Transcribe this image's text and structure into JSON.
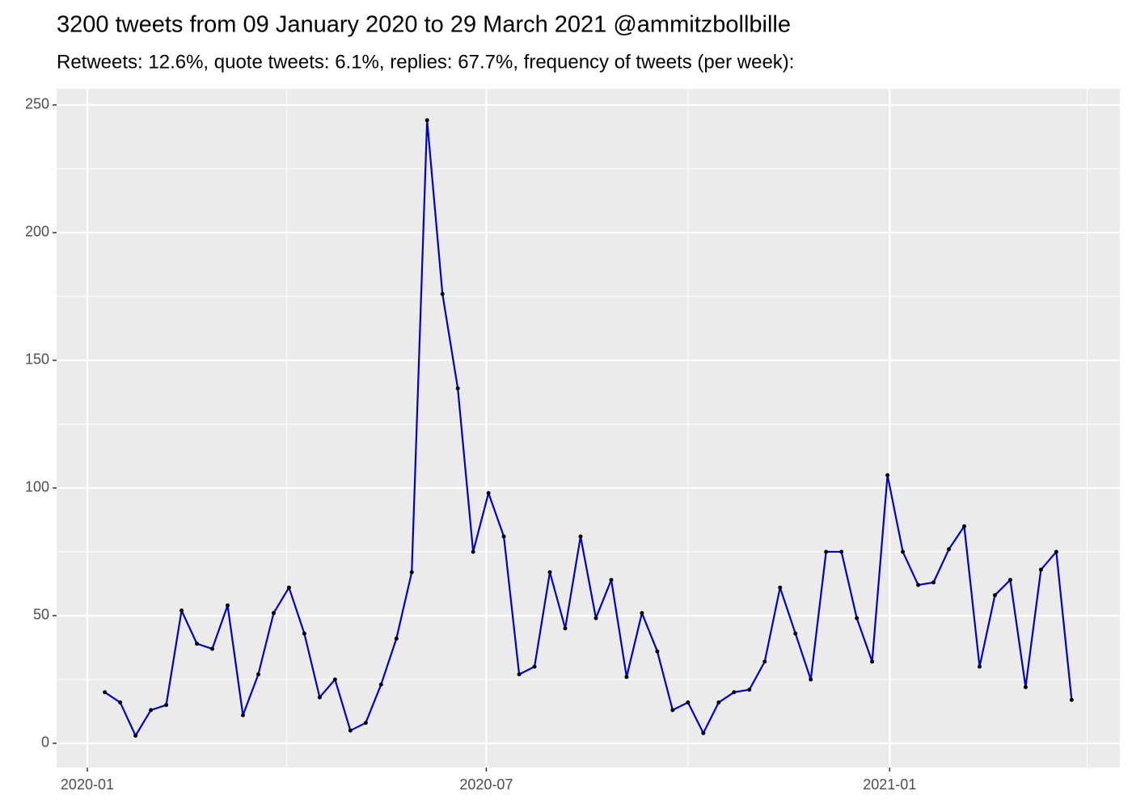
{
  "chart_data": {
    "type": "line",
    "title": "3200 tweets from 09 January 2020 to 29 March 2021 @ammitzbollbille",
    "subtitle": "Retweets: 12.6%, quote tweets: 6.1%, replies: 67.7%, frequency of tweets (per week):",
    "x": [
      "2020-01-09",
      "2020-01-16",
      "2020-01-23",
      "2020-01-30",
      "2020-02-06",
      "2020-02-13",
      "2020-02-20",
      "2020-02-27",
      "2020-03-05",
      "2020-03-12",
      "2020-03-19",
      "2020-03-26",
      "2020-04-02",
      "2020-04-09",
      "2020-04-16",
      "2020-04-23",
      "2020-04-30",
      "2020-05-07",
      "2020-05-14",
      "2020-05-21",
      "2020-05-28",
      "2020-06-04",
      "2020-06-11",
      "2020-06-18",
      "2020-06-25",
      "2020-07-02",
      "2020-07-09",
      "2020-07-16",
      "2020-07-23",
      "2020-07-30",
      "2020-08-06",
      "2020-08-13",
      "2020-08-20",
      "2020-08-27",
      "2020-09-03",
      "2020-09-10",
      "2020-09-17",
      "2020-09-24",
      "2020-10-01",
      "2020-10-08",
      "2020-10-15",
      "2020-10-22",
      "2020-10-29",
      "2020-11-05",
      "2020-11-12",
      "2020-11-19",
      "2020-11-26",
      "2020-12-03",
      "2020-12-10",
      "2020-12-17",
      "2020-12-24",
      "2020-12-31",
      "2021-01-07",
      "2021-01-14",
      "2021-01-21",
      "2021-01-28",
      "2021-02-04",
      "2021-02-11",
      "2021-02-18",
      "2021-02-25",
      "2021-03-04",
      "2021-03-11",
      "2021-03-18",
      "2021-03-25"
    ],
    "series": [
      {
        "color": "#0000cd",
        "point_color": "#000000",
        "values": [
          20,
          16,
          3,
          13,
          15,
          52,
          39,
          37,
          54,
          11,
          27,
          51,
          61,
          43,
          18,
          25,
          5,
          8,
          23,
          41,
          67,
          244,
          176,
          139,
          75,
          98,
          81,
          27,
          30,
          67,
          45,
          81,
          49,
          64,
          26,
          51,
          36,
          13,
          16,
          4,
          16,
          20,
          21,
          32,
          61,
          43,
          25,
          75,
          75,
          49,
          32,
          105,
          75,
          62,
          63,
          76,
          85,
          30,
          58,
          64,
          22,
          68,
          75,
          17
        ]
      }
    ],
    "xlim": [
      "2019-12-18",
      "2021-04-16"
    ],
    "xticks": [
      {
        "value": "2020-01-01",
        "label": "2020-01"
      },
      {
        "value": "2020-07-01",
        "label": "2020-07"
      },
      {
        "value": "2021-01-01",
        "label": "2021-01"
      }
    ],
    "x_minor_ticks": [
      "2020-04-01",
      "2020-10-01",
      "2021-04-01"
    ],
    "ylim": [
      -9.5,
      256.3
    ],
    "yticks": [
      0,
      50,
      100,
      150,
      200,
      250
    ],
    "y_minor_ticks": [
      25,
      75,
      125,
      175,
      225
    ],
    "grid": true
  }
}
